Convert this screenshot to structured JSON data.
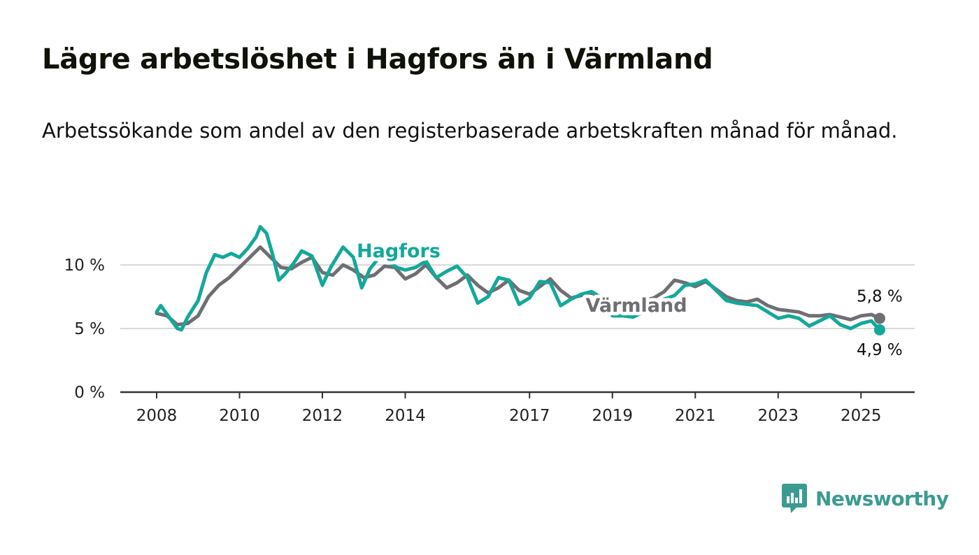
{
  "header": {
    "title": "Lägre arbetslöshet i Hagfors än i Värmland",
    "subtitle": "Arbetssökande som andel av den registerbaserade arbetskraften månad för månad."
  },
  "brand": {
    "name": "Newsworthy",
    "color": "#3a9b91",
    "icon": "newsworthy-logo-icon"
  },
  "colors": {
    "hagfors": "#13a89a",
    "varmland": "#6e6e73",
    "grid": "#d9d9d9",
    "axis": "#333333"
  },
  "chart_data": {
    "type": "line",
    "title": "Lägre arbetslöshet i Hagfors än i Värmland",
    "subtitle": "Arbetssökande som andel av den registerbaserade arbetskraften månad för månad.",
    "xlabel": "",
    "ylabel": "",
    "xlim": [
      2008,
      2026.5
    ],
    "ylim": [
      0,
      13.5
    ],
    "x_ticks": [
      {
        "value": 2008,
        "label": "2008"
      },
      {
        "value": 2010,
        "label": "2010"
      },
      {
        "value": 2012,
        "label": "2012"
      },
      {
        "value": 2014,
        "label": "2014"
      },
      {
        "value": 2017,
        "label": "2017"
      },
      {
        "value": 2019,
        "label": "2019"
      },
      {
        "value": 2021,
        "label": "2021"
      },
      {
        "value": 2023,
        "label": "2023"
      },
      {
        "value": 2025,
        "label": "2025"
      }
    ],
    "y_ticks": [
      {
        "value": 0,
        "label": "0 %"
      },
      {
        "value": 5,
        "label": "5 %"
      },
      {
        "value": 10,
        "label": "10 %"
      }
    ],
    "grid": true,
    "series": [
      {
        "name": "Värmland",
        "end_label": "5,8 %",
        "points": [
          [
            2008.0,
            6.2
          ],
          [
            2008.25,
            6.0
          ],
          [
            2008.5,
            5.3
          ],
          [
            2008.75,
            5.4
          ],
          [
            2009.0,
            6.0
          ],
          [
            2009.25,
            7.5
          ],
          [
            2009.5,
            8.4
          ],
          [
            2009.75,
            9.0
          ],
          [
            2010.0,
            9.8
          ],
          [
            2010.25,
            10.6
          ],
          [
            2010.5,
            11.4
          ],
          [
            2010.75,
            10.6
          ],
          [
            2011.0,
            9.8
          ],
          [
            2011.25,
            9.7
          ],
          [
            2011.5,
            10.2
          ],
          [
            2011.75,
            10.6
          ],
          [
            2012.0,
            9.4
          ],
          [
            2012.25,
            9.2
          ],
          [
            2012.5,
            10.0
          ],
          [
            2012.75,
            9.6
          ],
          [
            2013.0,
            9.0
          ],
          [
            2013.25,
            9.2
          ],
          [
            2013.5,
            9.9
          ],
          [
            2013.75,
            9.8
          ],
          [
            2014.0,
            8.9
          ],
          [
            2014.25,
            9.3
          ],
          [
            2014.5,
            10.0
          ],
          [
            2014.75,
            9.0
          ],
          [
            2015.0,
            8.2
          ],
          [
            2015.25,
            8.6
          ],
          [
            2015.5,
            9.2
          ],
          [
            2015.75,
            8.4
          ],
          [
            2016.0,
            7.8
          ],
          [
            2016.25,
            8.2
          ],
          [
            2016.5,
            8.8
          ],
          [
            2016.75,
            8.0
          ],
          [
            2017.0,
            7.7
          ],
          [
            2017.25,
            8.3
          ],
          [
            2017.5,
            8.9
          ],
          [
            2017.75,
            8.0
          ],
          [
            2018.0,
            7.4
          ],
          [
            2018.25,
            7.6
          ],
          [
            2018.5,
            7.8
          ],
          [
            2018.75,
            7.4
          ],
          [
            2019.0,
            6.9
          ],
          [
            2019.25,
            6.8
          ],
          [
            2019.5,
            7.1
          ],
          [
            2019.75,
            7.2
          ],
          [
            2020.0,
            7.4
          ],
          [
            2020.25,
            7.9
          ],
          [
            2020.5,
            8.8
          ],
          [
            2020.75,
            8.6
          ],
          [
            2021.0,
            8.3
          ],
          [
            2021.25,
            8.7
          ],
          [
            2021.5,
            8.1
          ],
          [
            2021.75,
            7.5
          ],
          [
            2022.0,
            7.2
          ],
          [
            2022.25,
            7.1
          ],
          [
            2022.5,
            7.3
          ],
          [
            2022.75,
            6.8
          ],
          [
            2023.0,
            6.5
          ],
          [
            2023.25,
            6.4
          ],
          [
            2023.5,
            6.3
          ],
          [
            2023.75,
            6.0
          ],
          [
            2024.0,
            6.0
          ],
          [
            2024.25,
            6.1
          ],
          [
            2024.5,
            5.9
          ],
          [
            2024.75,
            5.7
          ],
          [
            2025.0,
            6.0
          ],
          [
            2025.25,
            6.1
          ],
          [
            2025.45,
            5.8
          ]
        ]
      },
      {
        "name": "Hagfors",
        "end_label": "4,9 %",
        "points": [
          [
            2008.0,
            6.3
          ],
          [
            2008.1,
            6.8
          ],
          [
            2008.3,
            5.9
          ],
          [
            2008.5,
            5.0
          ],
          [
            2008.6,
            4.9
          ],
          [
            2008.75,
            5.9
          ],
          [
            2009.0,
            7.2
          ],
          [
            2009.2,
            9.4
          ],
          [
            2009.4,
            10.8
          ],
          [
            2009.6,
            10.6
          ],
          [
            2009.8,
            10.9
          ],
          [
            2010.0,
            10.6
          ],
          [
            2010.2,
            11.3
          ],
          [
            2010.4,
            12.2
          ],
          [
            2010.5,
            13.0
          ],
          [
            2010.65,
            12.5
          ],
          [
            2010.8,
            10.8
          ],
          [
            2010.95,
            8.8
          ],
          [
            2011.1,
            9.3
          ],
          [
            2011.3,
            10.1
          ],
          [
            2011.5,
            11.1
          ],
          [
            2011.75,
            10.7
          ],
          [
            2012.0,
            8.4
          ],
          [
            2012.2,
            9.8
          ],
          [
            2012.5,
            11.4
          ],
          [
            2012.75,
            10.6
          ],
          [
            2012.95,
            8.2
          ],
          [
            2013.15,
            9.7
          ],
          [
            2013.4,
            10.7
          ],
          [
            2013.6,
            10.2
          ],
          [
            2013.8,
            9.8
          ],
          [
            2014.0,
            9.6
          ],
          [
            2014.25,
            9.8
          ],
          [
            2014.5,
            10.3
          ],
          [
            2014.75,
            9.0
          ],
          [
            2015.0,
            9.5
          ],
          [
            2015.25,
            9.9
          ],
          [
            2015.5,
            9.0
          ],
          [
            2015.75,
            7.0
          ],
          [
            2016.0,
            7.5
          ],
          [
            2016.25,
            9.0
          ],
          [
            2016.5,
            8.8
          ],
          [
            2016.75,
            6.9
          ],
          [
            2017.0,
            7.4
          ],
          [
            2017.25,
            8.7
          ],
          [
            2017.5,
            8.6
          ],
          [
            2017.75,
            6.8
          ],
          [
            2018.0,
            7.3
          ],
          [
            2018.25,
            7.7
          ],
          [
            2018.5,
            7.9
          ],
          [
            2018.75,
            7.4
          ],
          [
            2019.0,
            6.0
          ],
          [
            2019.25,
            6.0
          ],
          [
            2019.5,
            5.9
          ],
          [
            2019.75,
            6.3
          ],
          [
            2020.0,
            7.0
          ],
          [
            2020.25,
            7.3
          ],
          [
            2020.5,
            7.6
          ],
          [
            2020.75,
            8.4
          ],
          [
            2021.0,
            8.5
          ],
          [
            2021.25,
            8.8
          ],
          [
            2021.5,
            8.0
          ],
          [
            2021.75,
            7.2
          ],
          [
            2022.0,
            7.0
          ],
          [
            2022.25,
            6.9
          ],
          [
            2022.5,
            6.8
          ],
          [
            2022.75,
            6.3
          ],
          [
            2023.0,
            5.8
          ],
          [
            2023.25,
            6.0
          ],
          [
            2023.5,
            5.8
          ],
          [
            2023.75,
            5.2
          ],
          [
            2024.0,
            5.6
          ],
          [
            2024.25,
            6.0
          ],
          [
            2024.5,
            5.3
          ],
          [
            2024.75,
            5.0
          ],
          [
            2025.0,
            5.4
          ],
          [
            2025.25,
            5.6
          ],
          [
            2025.45,
            4.9
          ]
        ]
      }
    ]
  }
}
